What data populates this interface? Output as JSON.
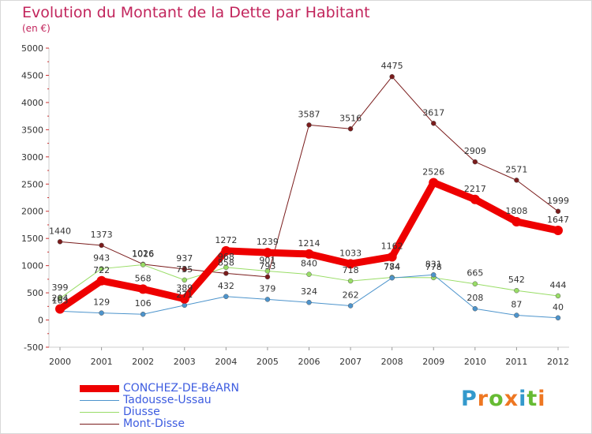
{
  "title": "Evolution du Montant de la Dette par Habitant",
  "subtitle": "(en €)",
  "logo": "Proxiti",
  "chart_data": {
    "type": "line",
    "title": "Evolution du Montant de la Dette par Habitant",
    "ylabel": "(en €)",
    "categories": [
      "2000",
      "2001",
      "2002",
      "2003",
      "2004",
      "2005",
      "2006",
      "2007",
      "2008",
      "2009",
      "2010",
      "2011",
      "2012"
    ],
    "ylim": [
      -500,
      5000
    ],
    "yticks": [
      -500,
      0,
      500,
      1000,
      1500,
      2000,
      2500,
      3000,
      3500,
      4000,
      4500,
      5000
    ],
    "grid": false,
    "legend": "bottom-left",
    "series": [
      {
        "name": "CONCHEZ-DE-BéARN",
        "color": "#ee0000",
        "values": [
          204,
          722,
          568,
          389,
          1272,
          1239,
          1214,
          1033,
          1162,
          2526,
          2217,
          1808,
          1647
        ]
      },
      {
        "name": "Tadousse-Ussau",
        "color": "#4d94cc",
        "values": [
          163,
          129,
          106,
          271,
          432,
          379,
          324,
          262,
          774,
          831,
          208,
          87,
          40
        ]
      },
      {
        "name": "Diusse",
        "color": "#99dd66",
        "values": [
          399,
          943,
          1016,
          735,
          968,
          901,
          840,
          718,
          784,
          778,
          665,
          542,
          444
        ]
      },
      {
        "name": "Mont-Disse",
        "color": "#7a1c1c",
        "values": [
          1440,
          1373,
          1026,
          937,
          858,
          793,
          3587,
          3516,
          4475,
          3617,
          2909,
          2571,
          1999
        ]
      }
    ]
  }
}
